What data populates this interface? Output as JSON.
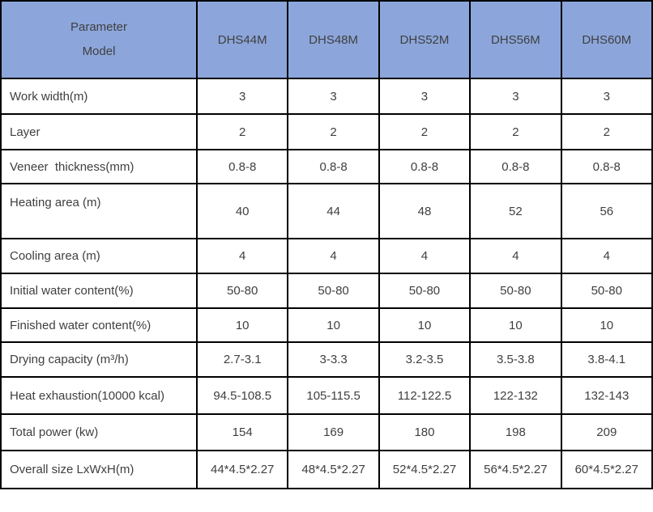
{
  "chart_data": {
    "type": "table",
    "corner_header": [
      "Parameter",
      "Model"
    ],
    "column_headers": [
      "DHS44M",
      "DHS48M",
      "DHS52M",
      "DHS56M",
      "DHS60M"
    ],
    "rows": [
      {
        "label": "Work width(m)",
        "values": [
          "3",
          "3",
          "3",
          "3",
          "3"
        ]
      },
      {
        "label": "Layer",
        "values": [
          "2",
          "2",
          "2",
          "2",
          "2"
        ]
      },
      {
        "label": "Veneer  thickness(mm)",
        "values": [
          "0.8-8",
          "0.8-8",
          "0.8-8",
          "0.8-8",
          "0.8-8"
        ]
      },
      {
        "label": "Heating area (m)",
        "values": [
          "40",
          "44",
          "48",
          "52",
          "56"
        ]
      },
      {
        "label": "Cooling area (m)",
        "values": [
          "4",
          "4",
          "4",
          "4",
          "4"
        ]
      },
      {
        "label": "Initial water content(%)",
        "values": [
          "50-80",
          "50-80",
          "50-80",
          "50-80",
          "50-80"
        ]
      },
      {
        "label": "Finished water content(%)",
        "values": [
          "10",
          "10",
          "10",
          "10",
          "10"
        ]
      },
      {
        "label": "Drying capacity (m³/h)",
        "values": [
          "2.7-3.1",
          "3-3.3",
          "3.2-3.5",
          "3.5-3.8",
          "3.8-4.1"
        ]
      },
      {
        "label": "Heat exhaustion(10000 kcal)",
        "values": [
          "94.5-108.5",
          "105-115.5",
          "112-122.5",
          "122-132",
          "132-143"
        ]
      },
      {
        "label": "Total power (kw)",
        "values": [
          "154",
          "169",
          "180",
          "198",
          "209"
        ]
      },
      {
        "label": "Overall size LxWxH(m)",
        "values": [
          "44*4.5*2.27",
          "48*4.5*2.27",
          "52*4.5*2.27",
          "56*4.5*2.27",
          "60*4.5*2.27"
        ]
      }
    ],
    "colors": {
      "header_bg": "#8ca6db",
      "border": "#000000",
      "text": "#3f3f3f"
    }
  }
}
